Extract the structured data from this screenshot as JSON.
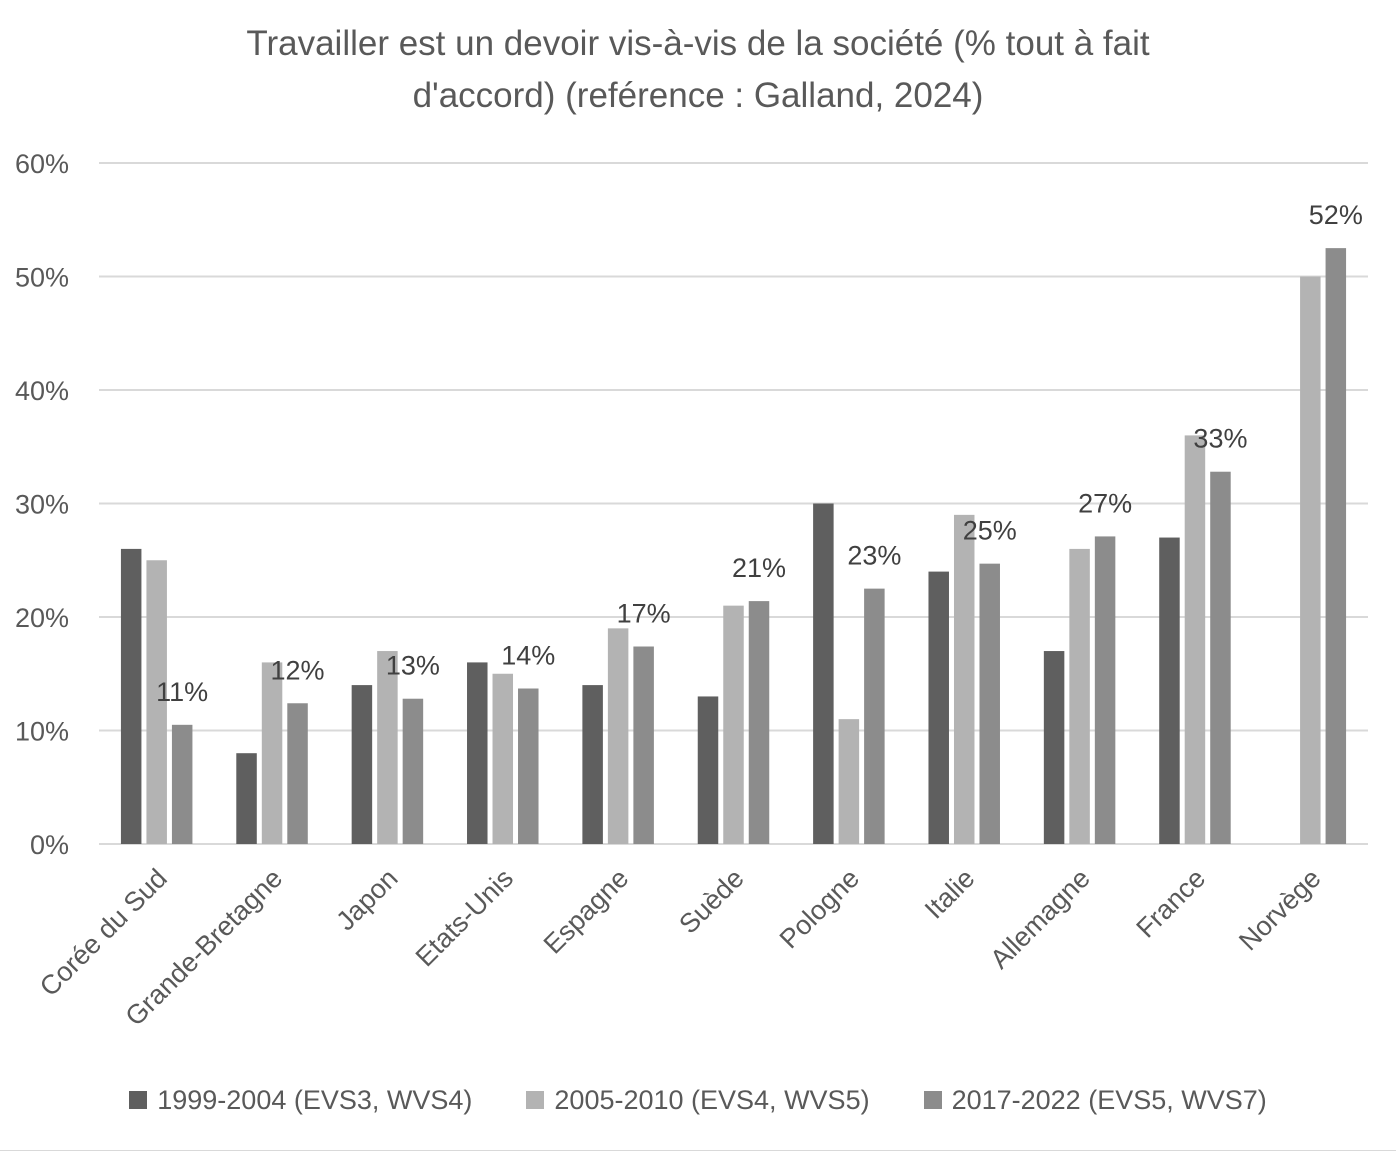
{
  "chart_data": {
    "type": "bar",
    "title_lines": [
      "Travailler est  un devoir vis-à-vis de la société (% tout à fait",
      "d'accord) (reférence : Galland, 2024)"
    ],
    "categories": [
      "Corée du Sud",
      "Grande-Bretagne",
      "Japon",
      "Etats-Unis",
      "Espagne",
      "Suède",
      "Pologne",
      "Italie",
      "Allemagne",
      "France",
      "Norvège"
    ],
    "series": [
      {
        "name": "1999-2004 (EVS3, WVS4)",
        "color": "#5f5f5f",
        "values": [
          26,
          8,
          14,
          16,
          14,
          13,
          30,
          24,
          17,
          27,
          null
        ]
      },
      {
        "name": "2005-2010 (EVS4, WVS5)",
        "color": "#b3b3b3",
        "values": [
          25,
          16,
          17,
          15,
          19,
          21,
          11,
          29,
          26,
          36,
          50
        ]
      },
      {
        "name": "2017-2022 (EVS5, WVS7)",
        "color": "#8c8c8c",
        "values": [
          10.5,
          12.4,
          12.8,
          13.7,
          17.4,
          21.4,
          22.5,
          24.7,
          27.1,
          32.8,
          52.5
        ]
      }
    ],
    "data_labels": {
      "series_index": 2,
      "labels": [
        "11%",
        "12%",
        "13%",
        "14%",
        "17%",
        "21%",
        "23%",
        "25%",
        "27%",
        "33%",
        "52%"
      ]
    },
    "yticks": [
      "0%",
      "10%",
      "20%",
      "30%",
      "40%",
      "50%",
      "60%"
    ],
    "ylim": [
      0,
      60
    ],
    "grid": true,
    "legend_position": "bottom",
    "xlabel": "",
    "ylabel": ""
  }
}
